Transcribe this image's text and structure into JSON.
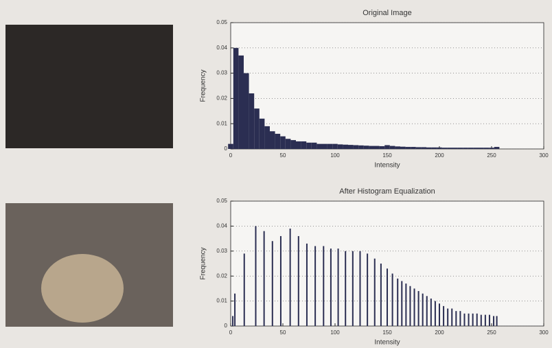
{
  "chart_data": [
    {
      "type": "bar",
      "title": "Original Image",
      "xlabel": "Intensity",
      "ylabel": "Frequency",
      "color": "#2b2e52",
      "x": [
        0,
        5,
        10,
        15,
        20,
        25,
        30,
        35,
        40,
        45,
        50,
        55,
        60,
        65,
        70,
        75,
        80,
        85,
        90,
        95,
        100,
        105,
        110,
        115,
        120,
        125,
        130,
        135,
        140,
        145,
        150,
        155,
        160,
        165,
        170,
        175,
        180,
        185,
        190,
        195,
        200,
        205,
        210,
        215,
        220,
        225,
        230,
        235,
        240,
        245,
        250,
        255
      ],
      "values": [
        0.002,
        0.04,
        0.037,
        0.03,
        0.022,
        0.016,
        0.012,
        0.009,
        0.007,
        0.006,
        0.005,
        0.004,
        0.0035,
        0.003,
        0.003,
        0.0025,
        0.0025,
        0.002,
        0.002,
        0.002,
        0.002,
        0.0018,
        0.0017,
        0.0016,
        0.0015,
        0.0014,
        0.0013,
        0.0012,
        0.0012,
        0.0011,
        0.0015,
        0.0012,
        0.001,
        0.0009,
        0.0008,
        0.0008,
        0.0007,
        0.0007,
        0.0006,
        0.0006,
        0.0006,
        0.0005,
        0.0005,
        0.0005,
        0.0005,
        0.0005,
        0.0005,
        0.0005,
        0.0005,
        0.0005,
        0.0005,
        0.0008
      ],
      "xlim": [
        0,
        300
      ],
      "xticks": [
        0,
        50,
        100,
        150,
        200,
        250,
        300
      ],
      "ylim": [
        0,
        0.05
      ],
      "yticks": [
        0,
        0.01,
        0.02,
        0.03,
        0.04,
        0.05
      ],
      "grid": true
    },
    {
      "type": "bar",
      "title": "After Histogram Equalization",
      "xlabel": "Intensity",
      "ylabel": "Frequency",
      "color": "#2b2e52",
      "x": [
        2,
        4,
        13,
        24,
        32,
        40,
        48,
        57,
        65,
        73,
        81,
        89,
        96,
        103,
        110,
        117,
        124,
        131,
        138,
        144,
        150,
        155,
        160,
        164,
        168,
        172,
        176,
        180,
        184,
        188,
        192,
        196,
        200,
        204,
        208,
        212,
        216,
        220,
        224,
        228,
        232,
        236,
        240,
        244,
        248,
        252,
        255
      ],
      "values": [
        0.004,
        0.013,
        0.029,
        0.04,
        0.038,
        0.034,
        0.036,
        0.039,
        0.036,
        0.033,
        0.032,
        0.032,
        0.031,
        0.031,
        0.03,
        0.03,
        0.03,
        0.029,
        0.027,
        0.025,
        0.023,
        0.021,
        0.019,
        0.018,
        0.017,
        0.016,
        0.015,
        0.014,
        0.013,
        0.012,
        0.011,
        0.01,
        0.009,
        0.008,
        0.007,
        0.007,
        0.006,
        0.006,
        0.005,
        0.005,
        0.005,
        0.005,
        0.0045,
        0.0045,
        0.0045,
        0.004,
        0.004
      ],
      "xlim": [
        0,
        300
      ],
      "xticks": [
        0,
        50,
        100,
        150,
        200,
        250,
        300
      ],
      "ylim": [
        0,
        0.05
      ],
      "yticks": [
        0,
        0.01,
        0.02,
        0.03,
        0.04,
        0.05
      ],
      "grid": true
    }
  ]
}
